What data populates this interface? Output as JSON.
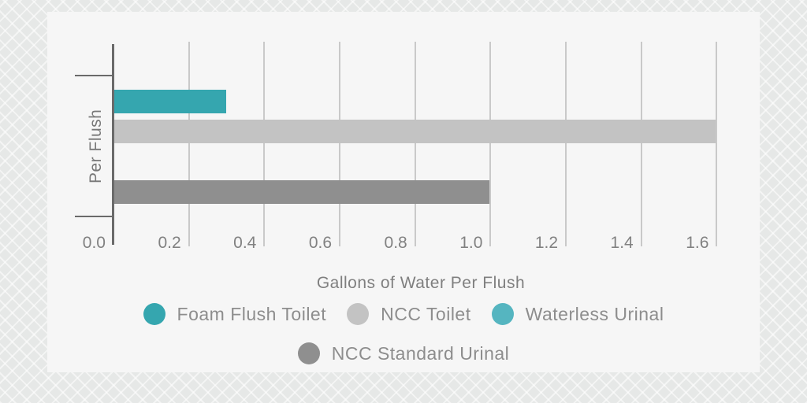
{
  "background": {
    "outer_color": "#e6e8e7",
    "card_color": "#f6f6f6"
  },
  "chart_data": {
    "type": "bar",
    "orientation": "horizontal",
    "category": "Per Flush",
    "xlabel": "Gallons of Water Per Flush",
    "xlim": [
      0,
      1.7
    ],
    "x_ticks": [
      {
        "label": "0.0",
        "value": 0.0
      },
      {
        "label": "0.2",
        "value": 0.2
      },
      {
        "label": "0.4",
        "value": 0.4
      },
      {
        "label": "0.6",
        "value": 0.6
      },
      {
        "label": "0.8",
        "value": 0.8
      },
      {
        "label": "1.0",
        "value": 1.0
      },
      {
        "label": "1.2",
        "value": 1.2
      },
      {
        "label": "1.4",
        "value": 1.4
      },
      {
        "label": "1.6",
        "value": 1.6
      }
    ],
    "grid": "vertical",
    "legend_position": "bottom",
    "series": [
      {
        "name": "Foam Flush Toilet",
        "value": 0.3,
        "color": "#35a6af"
      },
      {
        "name": "NCC Toilet",
        "value": 1.6,
        "color": "#c3c3c3"
      },
      {
        "name": "Waterless Urinal",
        "value": 0.0,
        "color": "#55b5c0"
      },
      {
        "name": "NCC Standard Urinal",
        "value": 1.0,
        "color": "#8f8f8f"
      }
    ],
    "axis_colors": {
      "axis_line": "#6a6a6a",
      "gridline": "#c9c9c9",
      "tick_text": "#818181"
    }
  }
}
